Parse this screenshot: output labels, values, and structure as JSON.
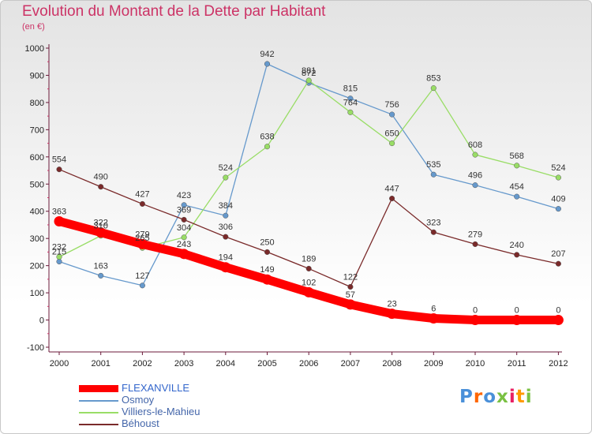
{
  "header": {
    "title": "Evolution du Montant de la Dette par Habitant",
    "subtitle": "(en €)"
  },
  "brand": {
    "logo_text": "Proxiti"
  },
  "colors": {
    "title": "#cc3366",
    "axis": "#6b1a3a"
  },
  "chart_data": {
    "type": "line",
    "title": "Evolution du Montant de la Dette par Habitant",
    "ylabel": "(en €)",
    "xlabel": "",
    "x": [
      "2000",
      "2001",
      "2002",
      "2003",
      "2004",
      "2005",
      "2006",
      "2007",
      "2008",
      "2009",
      "2010",
      "2011",
      "2012"
    ],
    "ylim": [
      -100,
      1000
    ],
    "yticks": [
      -100,
      0,
      100,
      200,
      300,
      400,
      500,
      600,
      700,
      800,
      900,
      1000
    ],
    "grid": false,
    "legend_position": "bottom-left",
    "series": [
      {
        "name": "FLEXANVILLE",
        "color": "#ff0000",
        "emphasis": true,
        "values": [
          363,
          322,
          279,
          243,
          194,
          149,
          102,
          57,
          23,
          6,
          0,
          0,
          0
        ],
        "labels": [
          "363",
          "322",
          "279",
          "243",
          "194",
          "149",
          "102",
          "57",
          "23",
          "6",
          "0",
          "0",
          "0"
        ]
      },
      {
        "name": "Osmoy",
        "color": "#6699cc",
        "emphasis": false,
        "values": [
          215,
          163,
          127,
          423,
          384,
          942,
          872,
          815,
          756,
          535,
          496,
          454,
          409
        ],
        "labels": [
          "215",
          "163",
          "127",
          "423",
          "384",
          "942",
          "872",
          "815",
          "756",
          "535",
          "496",
          "454",
          "409"
        ]
      },
      {
        "name": "Villiers-le-Mahieu",
        "color": "#99dd66",
        "emphasis": false,
        "values": [
          232,
          310,
          265,
          304,
          524,
          638,
          881,
          764,
          650,
          853,
          608,
          568,
          524
        ],
        "labels": [
          "232",
          "310",
          "265",
          "304",
          "524",
          "638",
          "881",
          "764",
          "650",
          "853",
          "608",
          "568",
          "524"
        ]
      },
      {
        "name": "Béhoust",
        "color": "#7a2a2a",
        "emphasis": false,
        "values": [
          554,
          490,
          427,
          369,
          306,
          250,
          189,
          122,
          447,
          323,
          279,
          240,
          207
        ],
        "labels": [
          "554",
          "490",
          "427",
          "369",
          "306",
          "250",
          "189",
          "122",
          "447",
          "323",
          "279",
          "240",
          "207"
        ]
      }
    ]
  }
}
